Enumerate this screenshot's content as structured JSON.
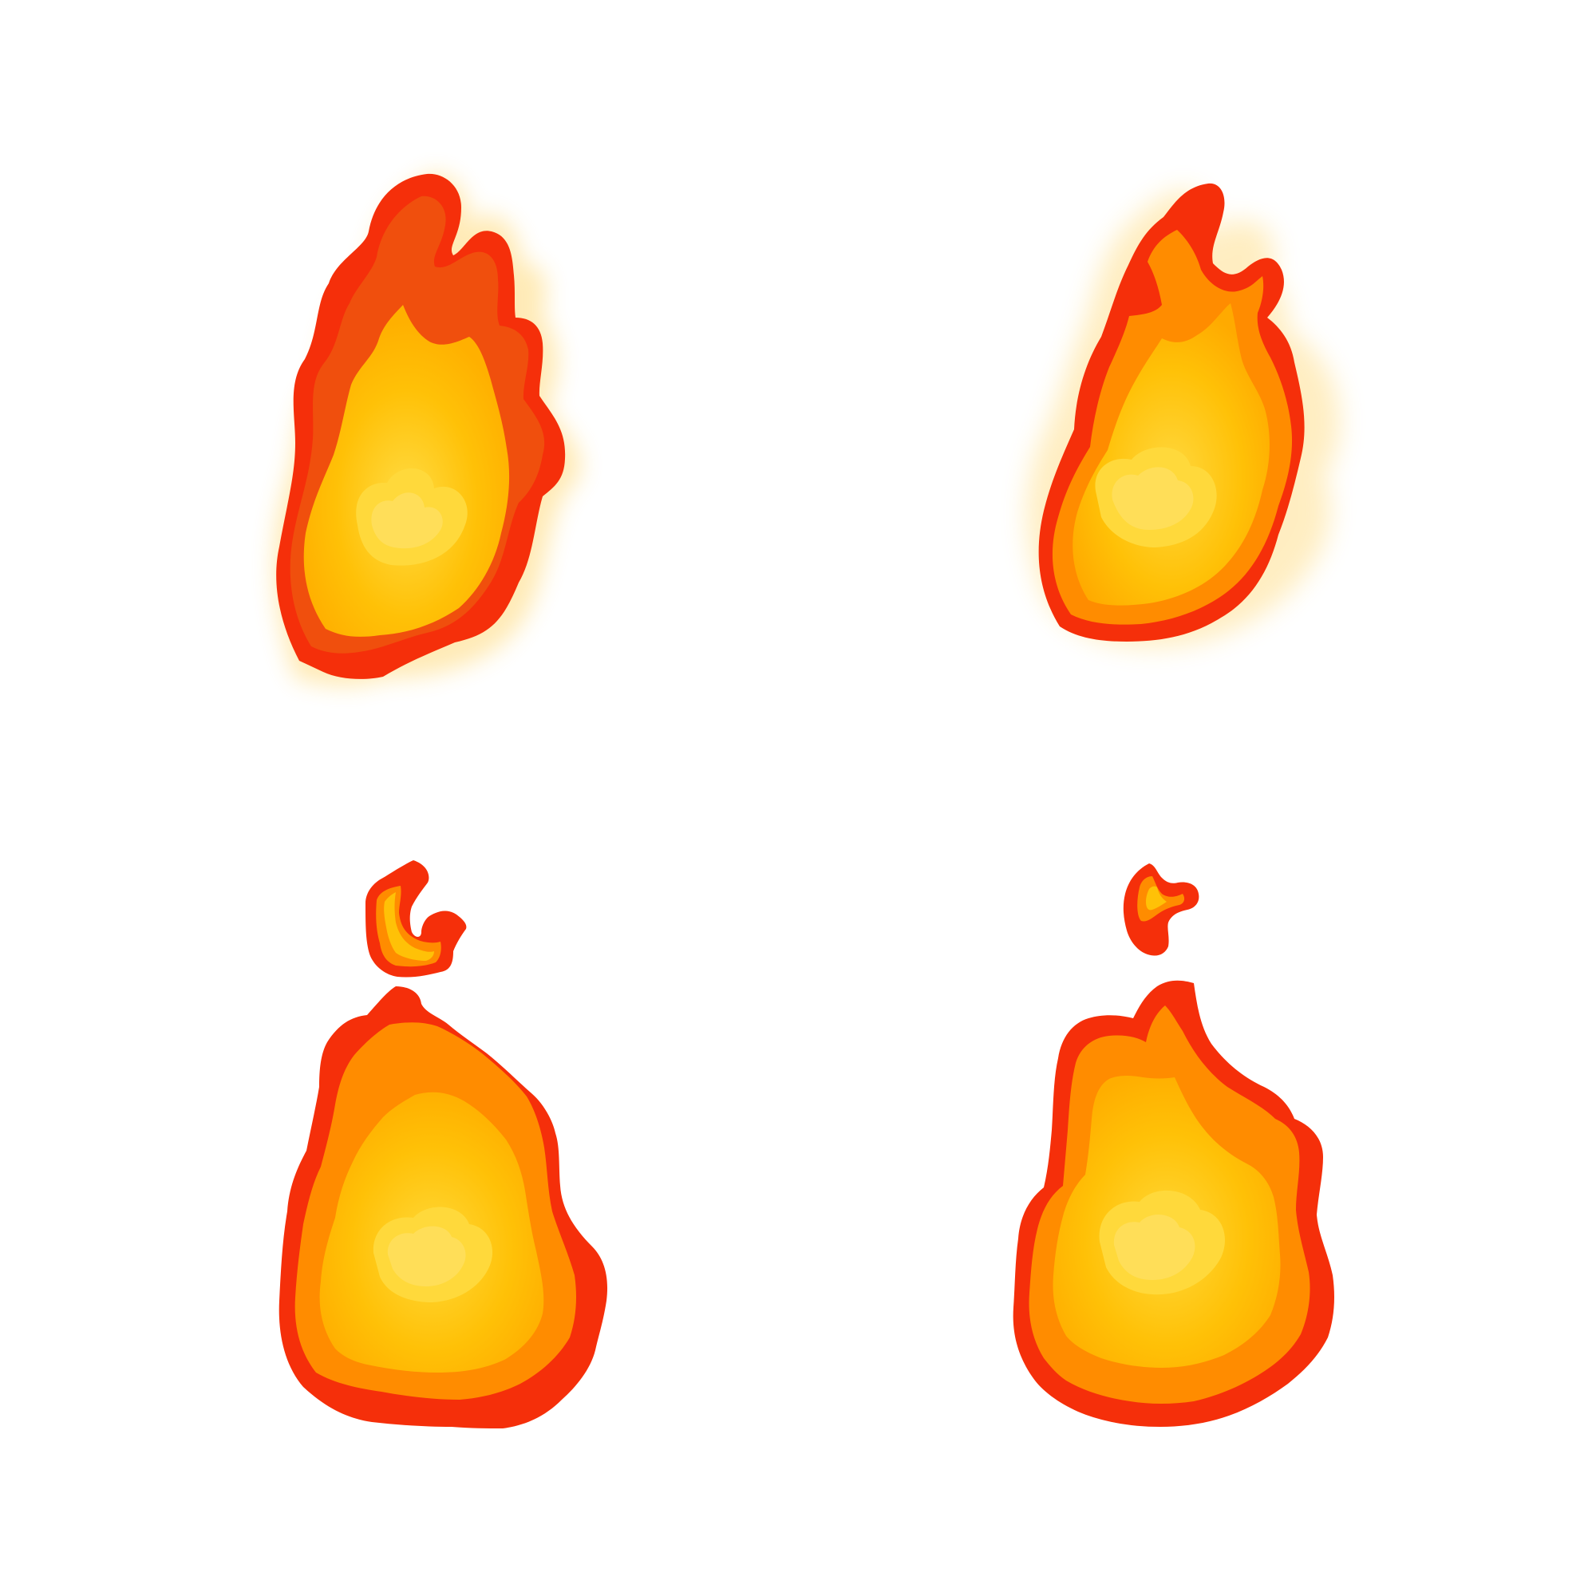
{
  "sprite_sheet": {
    "background": "#ffffff",
    "palette": {
      "outline": "#f52f0a",
      "outer": "#ff8c00",
      "mid": "#ffbb00",
      "core": "#ffe25b",
      "highlight": "#fff0a0",
      "glow": "#ffd25f"
    },
    "sprites": [
      {
        "name": "flame-frame-1",
        "style": "tall flame with glow"
      },
      {
        "name": "flame-frame-2",
        "style": "tall flame with side tongue"
      },
      {
        "name": "flame-frame-3",
        "style": "round flame with separated ember"
      },
      {
        "name": "flame-frame-4",
        "style": "round flame with small ember"
      }
    ]
  }
}
